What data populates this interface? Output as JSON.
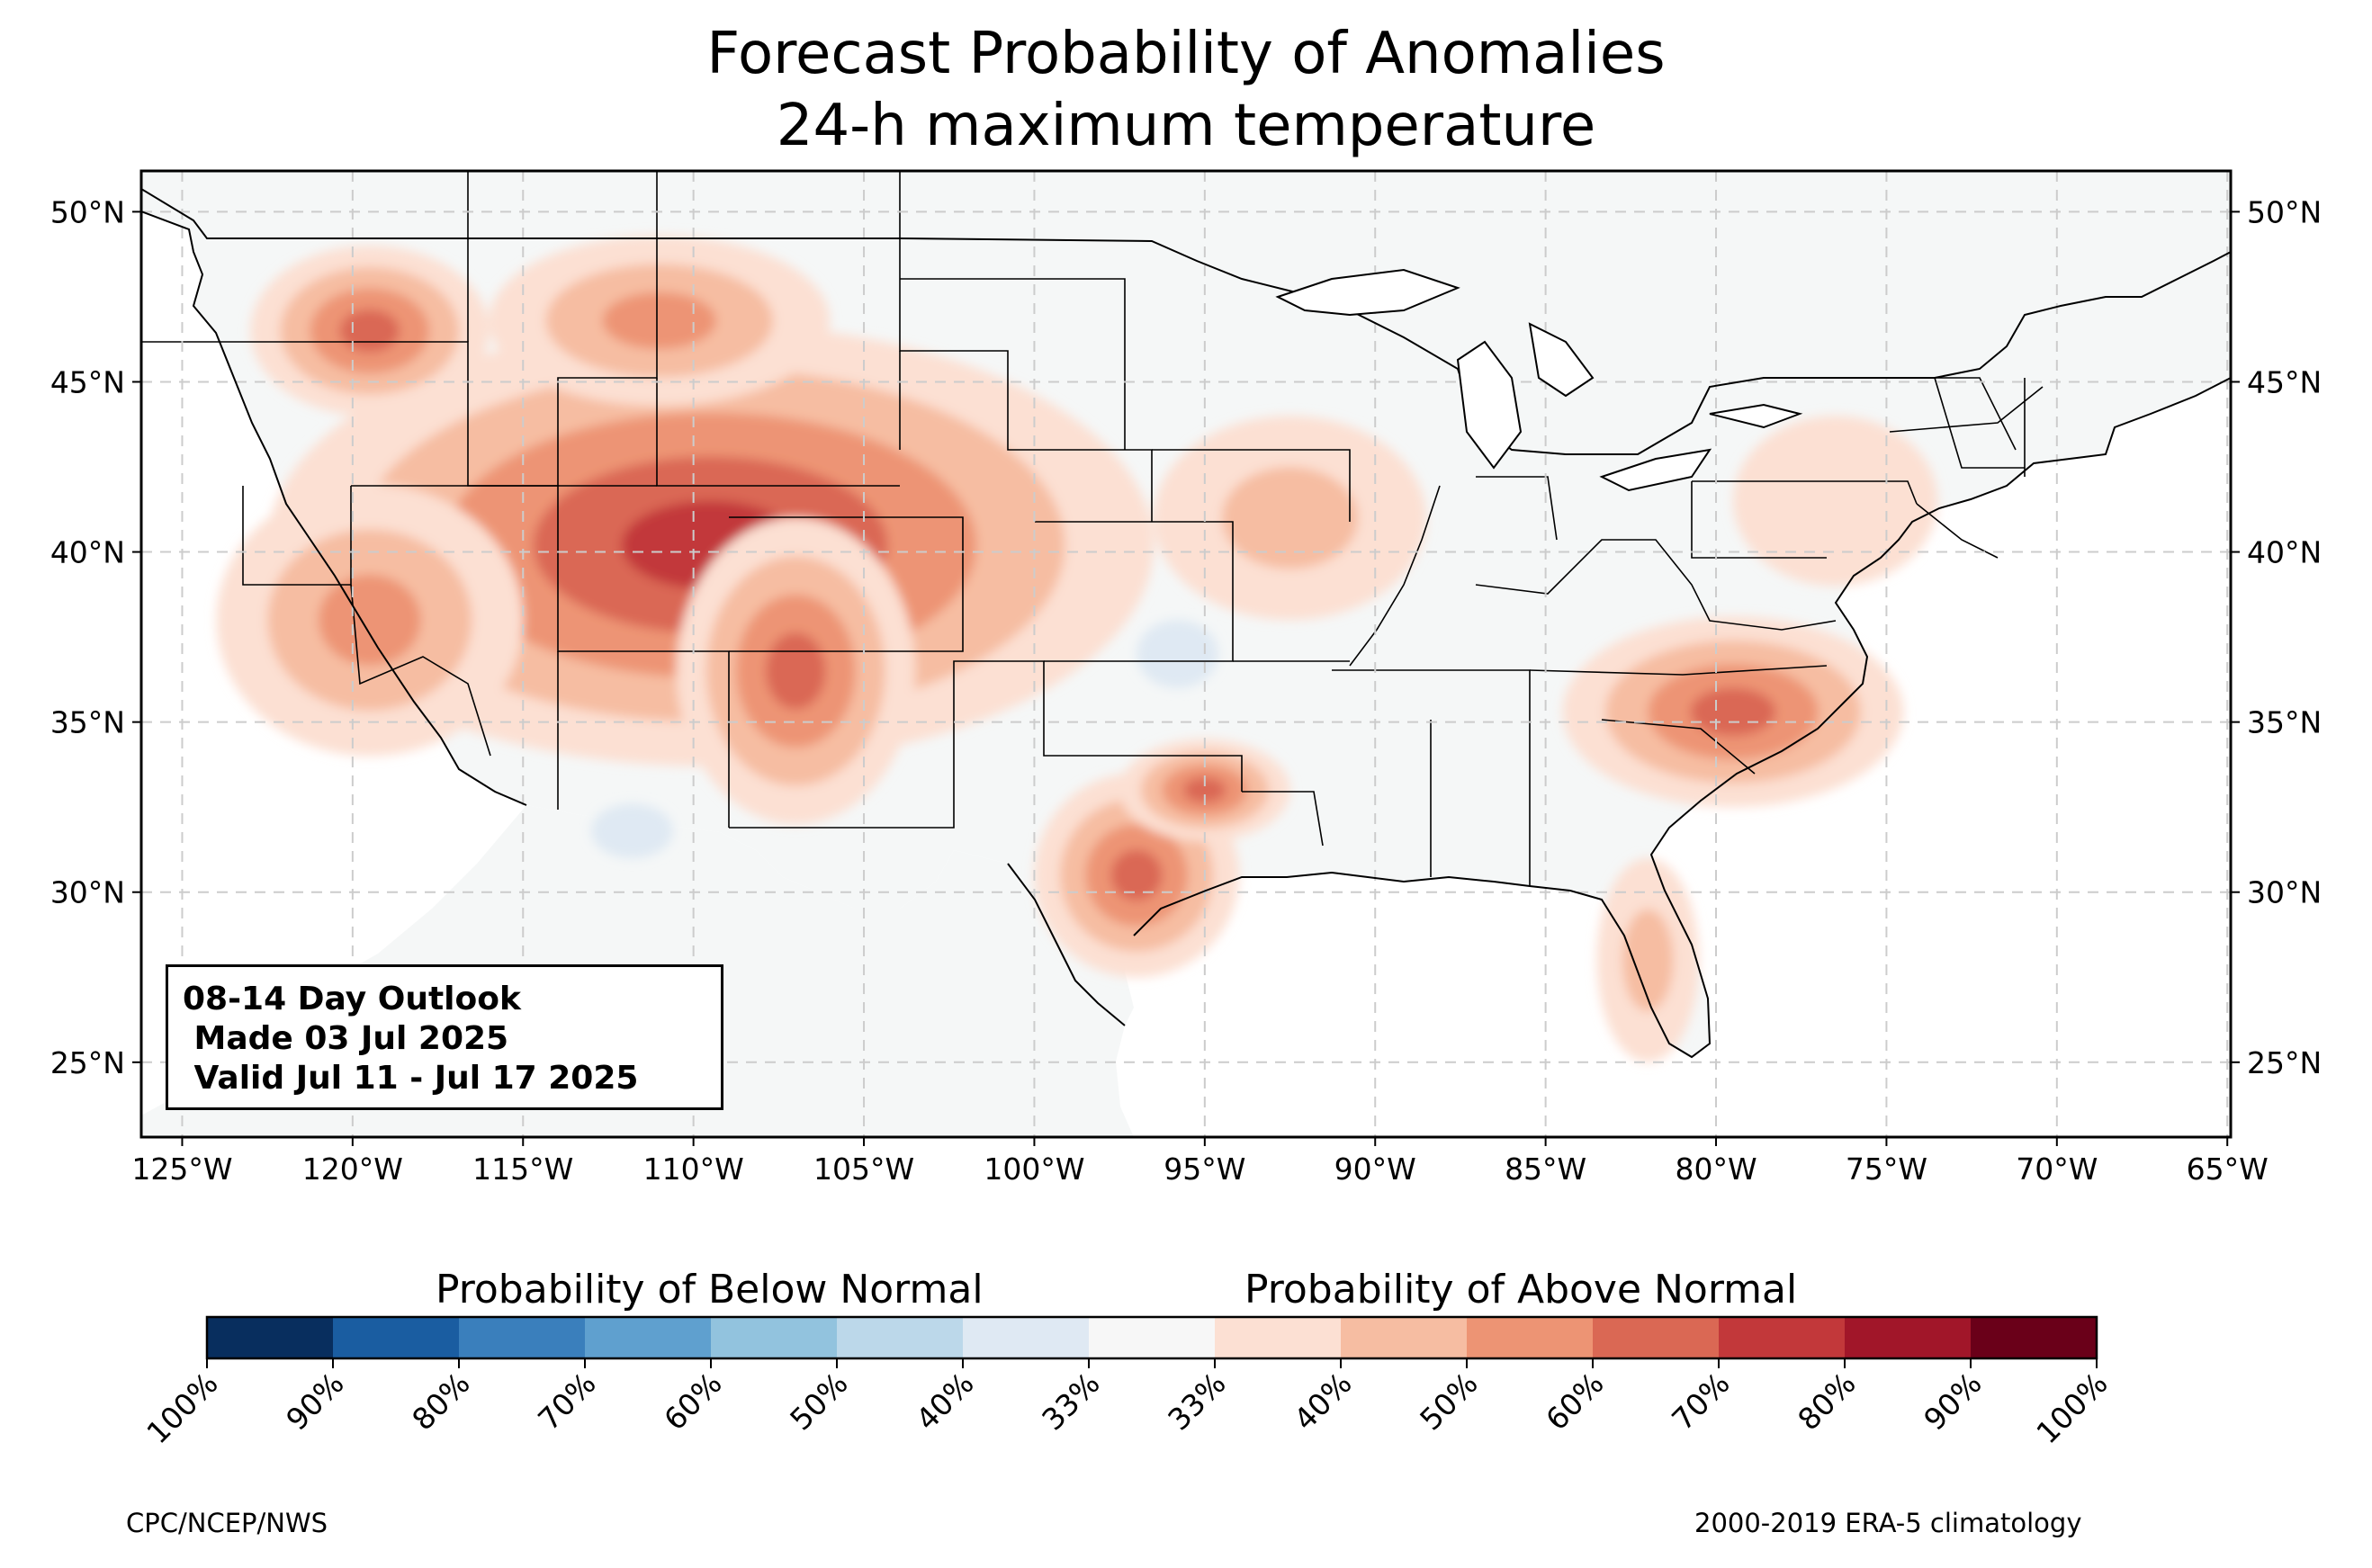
{
  "title": {
    "line1": "Forecast Probability of Anomalies",
    "line2": "24-h maximum temperature"
  },
  "infobox": {
    "line1": "08-14 Day Outlook",
    "line2": " Made 03 Jul 2025",
    "line3": " Valid Jul 11 - Jul 17 2025"
  },
  "axes": {
    "lon_ticks": [
      "125°W",
      "120°W",
      "115°W",
      "110°W",
      "105°W",
      "100°W",
      "95°W",
      "90°W",
      "85°W",
      "80°W",
      "75°W",
      "70°W",
      "65°W"
    ],
    "lat_ticks": [
      "50°N",
      "45°N",
      "40°N",
      "35°N",
      "30°N",
      "25°N"
    ],
    "lon_values": [
      -125,
      -120,
      -115,
      -110,
      -105,
      -100,
      -95,
      -90,
      -85,
      -80,
      -75,
      -70,
      -65
    ],
    "lat_values": [
      50,
      45,
      40,
      35,
      30,
      25
    ],
    "lon_range": [
      -126.2,
      -64.9
    ],
    "lat_range": [
      22.8,
      51.2
    ],
    "gridlines": true
  },
  "colorbar": {
    "below_label": "Probability of Below Normal",
    "above_label": "Probability of Above Normal",
    "tick_labels": [
      "100%",
      "90%",
      "80%",
      "70%",
      "60%",
      "50%",
      "40%",
      "33%",
      "33%",
      "40%",
      "50%",
      "60%",
      "70%",
      "80%",
      "90%",
      "100%"
    ],
    "colors": [
      "#082e5e",
      "#1a5da1",
      "#3a7fbc",
      "#5fa0cf",
      "#92c3de",
      "#bcd8ea",
      "#dfe9f3",
      "#f7f7f7",
      "#fce0d3",
      "#f6bda2",
      "#ed9474",
      "#da6854",
      "#c2383a",
      "#a11629",
      "#6a0019"
    ]
  },
  "footer": {
    "left": "CPC/NCEP/NWS",
    "right": "2000-2019 ERA-5 climatology"
  },
  "colors": {
    "land": "#f5f7f7",
    "ocean": "#ffffff",
    "gridline": "#cccccc",
    "boundary": "#000000",
    "state_line": "#000000"
  },
  "chart_data": {
    "type": "heatmap",
    "title": "Forecast Probability of Anomalies 24-h maximum temperature",
    "xlabel": "",
    "ylabel": "",
    "x_range": [
      -126.2,
      -64.9
    ],
    "y_range": [
      22.8,
      51.2
    ],
    "levels_above": [
      33,
      40,
      50,
      60,
      70,
      80,
      90,
      100
    ],
    "levels_below": [
      33,
      40,
      50,
      60,
      70,
      80,
      90,
      100
    ],
    "regions": [
      {
        "name": "Great Basin / Rockies / Four Corners",
        "category": "above",
        "center": [
          -109.5,
          40.2
        ],
        "radius_deg": [
          13.0,
          6.5
        ],
        "peak_probability": 80
      },
      {
        "name": "Pacific Northwest",
        "category": "above",
        "center": [
          -119.5,
          46.5
        ],
        "radius_deg": [
          3.5,
          2.5
        ],
        "peak_probability": 70
      },
      {
        "name": "Northern Rockies / Montana",
        "category": "above",
        "center": [
          -111.0,
          46.8
        ],
        "radius_deg": [
          5.0,
          2.5
        ],
        "peak_probability": 60
      },
      {
        "name": "California / Nevada",
        "category": "above",
        "center": [
          -119.5,
          38.0
        ],
        "radius_deg": [
          4.5,
          4.0
        ],
        "peak_probability": 60
      },
      {
        "name": "Colorado / New Mexico",
        "category": "above",
        "center": [
          -107.0,
          36.5
        ],
        "radius_deg": [
          3.5,
          4.5
        ],
        "peak_probability": 70
      },
      {
        "name": "Central Texas",
        "category": "above",
        "center": [
          -97.0,
          30.5
        ],
        "radius_deg": [
          3.0,
          3.0
        ],
        "peak_probability": 70
      },
      {
        "name": "East Texas / Arkansas border",
        "category": "above",
        "center": [
          -95.0,
          33.0
        ],
        "radius_deg": [
          2.5,
          1.5
        ],
        "peak_probability": 70
      },
      {
        "name": "Carolinas / Southeast",
        "category": "above",
        "center": [
          -79.5,
          35.3
        ],
        "radius_deg": [
          5.0,
          2.8
        ],
        "peak_probability": 70
      },
      {
        "name": "Upper Midwest / Iowa",
        "category": "above",
        "center": [
          -92.5,
          41.0
        ],
        "radius_deg": [
          4.0,
          3.0
        ],
        "peak_probability": 50
      },
      {
        "name": "Florida peninsula",
        "category": "above",
        "center": [
          -82.0,
          28.0
        ],
        "radius_deg": [
          1.5,
          3.0
        ],
        "peak_probability": 50
      },
      {
        "name": "Mid-Atlantic / Northeast",
        "category": "above",
        "center": [
          -76.5,
          41.5
        ],
        "radius_deg": [
          3.0,
          2.5
        ],
        "peak_probability": 40
      },
      {
        "name": "Southern Arizona",
        "category": "below",
        "center": [
          -111.8,
          31.8
        ],
        "radius_deg": [
          1.2,
          0.8
        ],
        "peak_probability": 40
      },
      {
        "name": "Oklahoma / Kansas",
        "category": "below",
        "center": [
          -95.8,
          37.0
        ],
        "radius_deg": [
          1.2,
          1.0
        ],
        "peak_probability": 40
      }
    ]
  }
}
